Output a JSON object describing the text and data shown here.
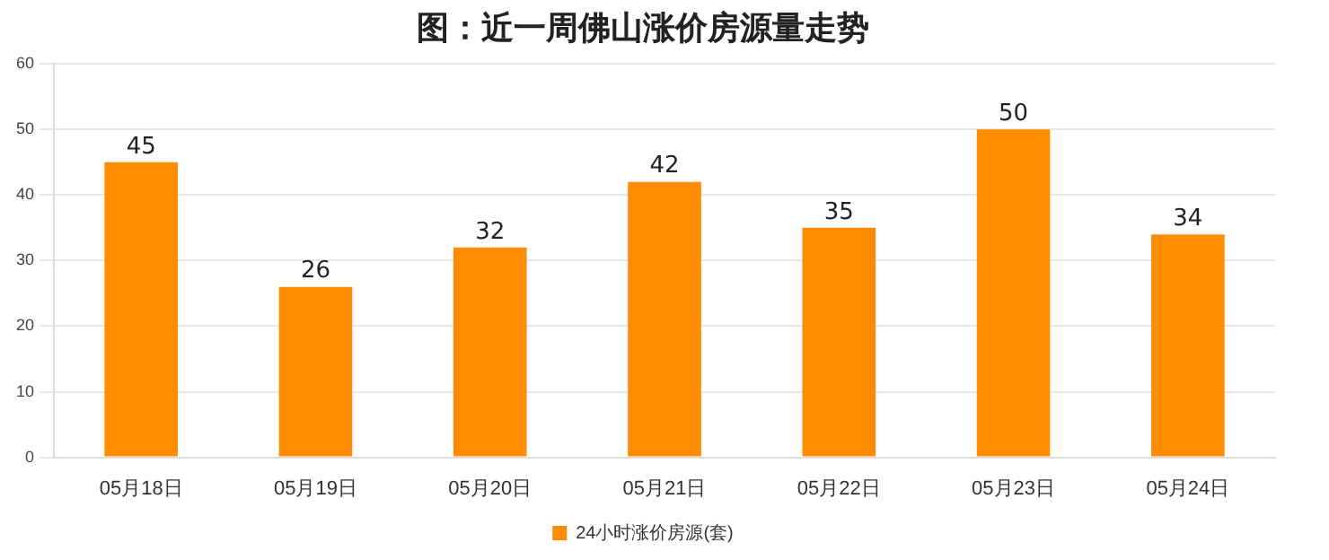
{
  "chart_data": {
    "type": "bar",
    "title": "图：近一周佛山涨价房源量走势",
    "categories": [
      "05月18日",
      "05月19日",
      "05月20日",
      "05月21日",
      "05月22日",
      "05月23日",
      "05月24日"
    ],
    "series": [
      {
        "name": "24小时涨价房源(套)",
        "color": "#ff8c00",
        "values": [
          45,
          26,
          32,
          42,
          35,
          50,
          34
        ]
      }
    ],
    "ylim": [
      0,
      60
    ],
    "yticks": [
      0,
      10,
      20,
      30,
      40,
      50,
      60
    ],
    "grid": "y",
    "legend": "bottom",
    "data_labels": true
  }
}
